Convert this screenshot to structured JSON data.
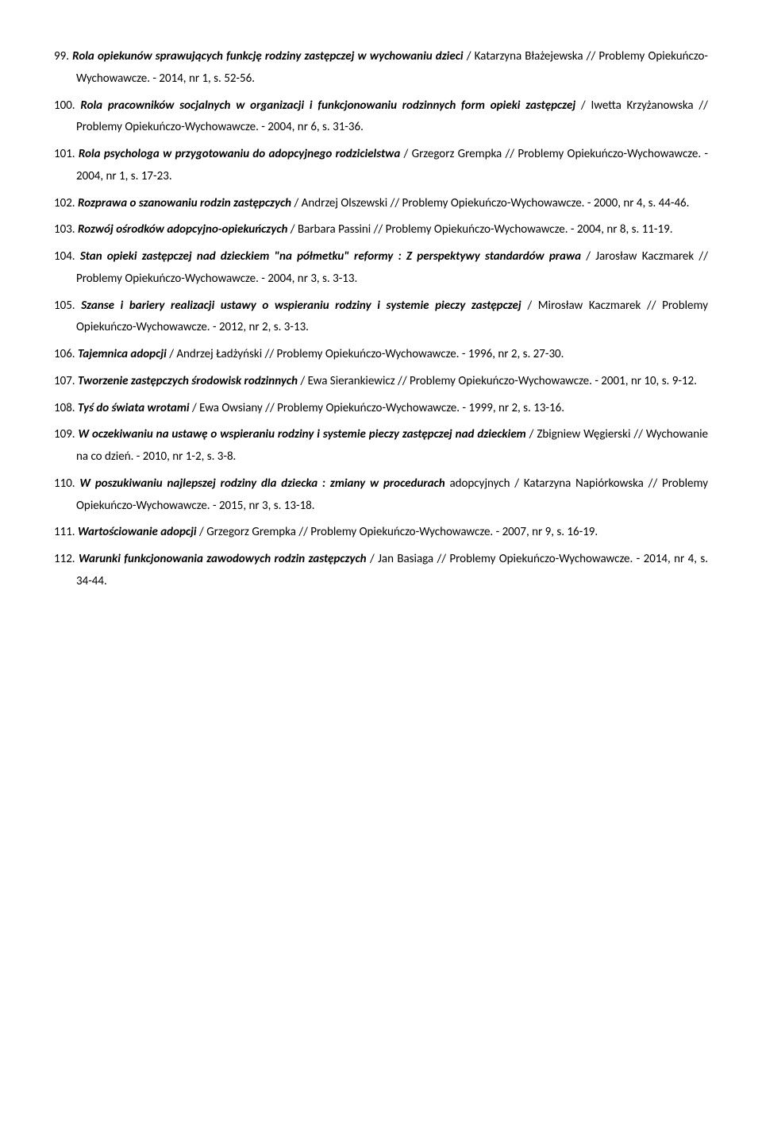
{
  "entries": [
    {
      "num": "99.",
      "title_bi": "Rola opiekunów sprawujących funkcję rodziny zastępczej w wychowaniu dzieci",
      "title_b": "",
      "rest": " / Katarzyna Błażejewska // Problemy Opiekuńczo-Wychowawcze. - 2014, nr 1, s. 52-56."
    },
    {
      "num": "100.",
      "title_bi": "Rola pracowników socjalnych w organizacji i funkcjonowaniu rodzinnych form opieki zastępczej",
      "title_b": "",
      "rest": " / Iwetta Krzyżanowska // Problemy Opiekuńczo-Wychowawcze. - 2004, nr 6, s. 31-36."
    },
    {
      "num": "101.",
      "title_bi": "Rola psychologa w przygotowaniu do adopcyjnego rodzicielstwa",
      "title_b": "",
      "rest": " / Grzegorz Grempka // Problemy Opiekuńczo-Wychowawcze. - 2004, nr 1, s. 17-23."
    },
    {
      "num": "102.",
      "title_bi": "Rozprawa o szanowaniu rodzin zastępczych",
      "title_b": "",
      "rest": " / Andrzej Olszewski // Problemy Opiekuńczo-Wychowawcze. - 2000, nr 4, s. 44-46."
    },
    {
      "num": "103.",
      "title_bi": "Rozwój ośrodków adopcyjno-opiekuńczych",
      "title_b": "",
      "rest": " / Barbara Passini // Problemy Opiekuńczo-Wychowawcze. - 2004, nr 8, s. 11-19."
    },
    {
      "num": "104.",
      "title_bi": "Stan opieki zastępczej nad dzieckiem \"na półmetku\" reformy : Z perspektywy standardów prawa",
      "title_b": "",
      "rest": " / Jarosław Kaczmarek // Problemy Opiekuńczo-Wychowawcze. - 2004, nr 3, s. 3-13."
    },
    {
      "num": "105.",
      "title_bi": "Szanse i bariery realizacji ustawy o wspieraniu rodziny i systemie pieczy zastępczej",
      "title_b": "",
      "rest": " / Mirosław Kaczmarek // Problemy Opiekuńczo-Wychowawcze. - 2012, nr 2, s. 3-13."
    },
    {
      "num": "106.",
      "title_bi": "Tajemnica adopcji",
      "title_b": "",
      "rest": " / Andrzej Ładżyński // Problemy Opiekuńczo-Wychowawcze. - 1996, nr 2, s. 27-30."
    },
    {
      "num": "107.",
      "title_bi": "Tworzenie zastępczych środowisk rodzinnych",
      "title_b": "",
      "rest": " / Ewa Sierankiewicz // Problemy Opiekuńczo-Wychowawcze. - 2001, nr 10, s. 9-12."
    },
    {
      "num": "108.",
      "title_bi": "Tyś do świata wrotami",
      "title_b": "",
      "rest": " / Ewa Owsiany // Problemy Opiekuńczo-Wychowawcze. - 1999, nr 2, s. 13-16."
    },
    {
      "num": "109.",
      "title_bi": "W oczekiwaniu na ustawę o wspieraniu rodziny i systemie pieczy zastępczej nad dzieckiem",
      "title_b": "",
      "rest": " / Zbigniew Węgierski // Wychowanie na co dzień. - 2010, nr 1-2, s. 3-8."
    },
    {
      "num": "110.",
      "title_bi": "W poszukiwaniu najlepszej rodziny dla dziecka : zmiany w procedurach ",
      "title_b": "",
      "rest": "adopcyjnych / Katarzyna Napiórkowska // Problemy Opiekuńczo-Wychowawcze. - 2015, nr 3, s. 13-18."
    },
    {
      "num": "111.",
      "title_bi": "Wartościowanie adopcji",
      "title_b": "",
      "rest": " / Grzegorz Grempka // Problemy Opiekuńczo-Wychowawcze. - 2007, nr 9, s. 16-19."
    },
    {
      "num": "112.",
      "title_bi": "Warunki funkcjonowania zawodowych rodzin zastępczych",
      "title_b": "",
      "rest": " / Jan Basiaga // Problemy Opiekuńczo-Wychowawcze. - 2014, nr 4, s. 34-44."
    }
  ]
}
